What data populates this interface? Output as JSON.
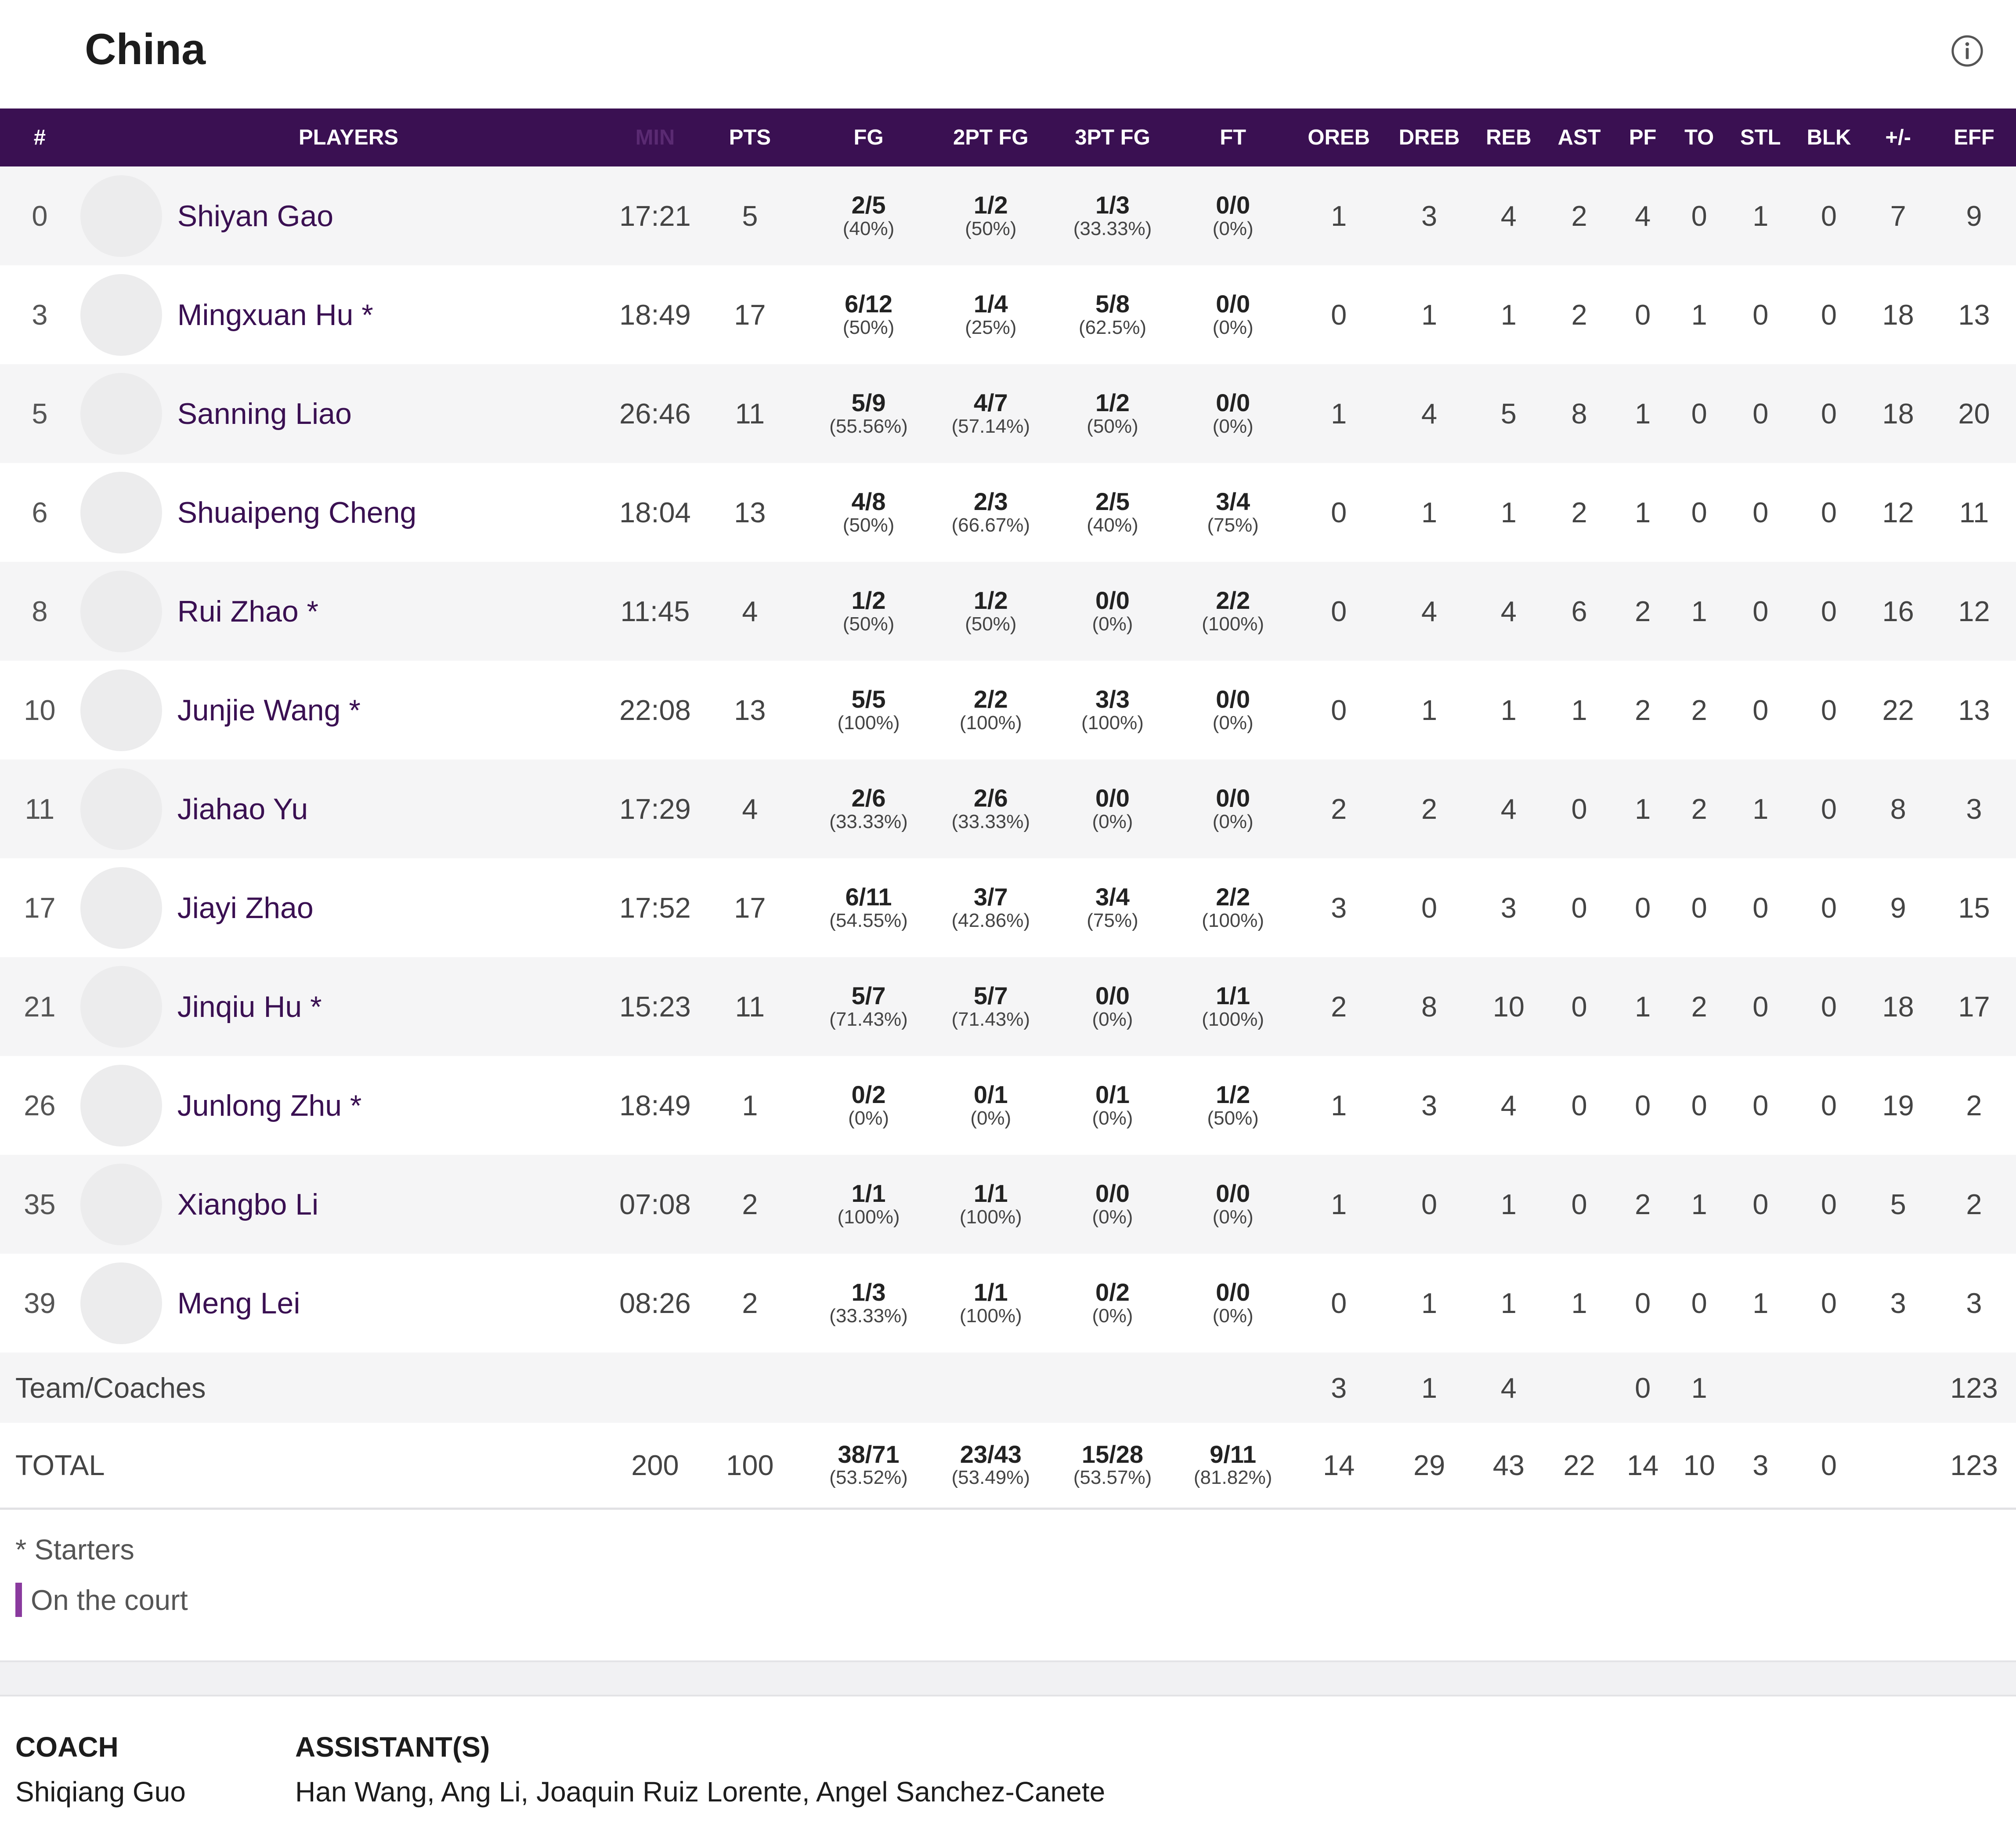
{
  "team": {
    "name": "China"
  },
  "columns": [
    "#",
    "PLAYERS",
    "MIN",
    "PTS",
    "FG",
    "2PT FG",
    "3PT FG",
    "FT",
    "OREB",
    "DREB",
    "REB",
    "AST",
    "PF",
    "TO",
    "STL",
    "BLK",
    "+/-",
    "EFF"
  ],
  "players": [
    {
      "num": "0",
      "name": "Shiyan Gao",
      "min": "17:21",
      "pts": "5",
      "fg": "2/5",
      "fg_pct": "(40%)",
      "fg2": "1/2",
      "fg2_pct": "(50%)",
      "fg3": "1/3",
      "fg3_pct": "(33.33%)",
      "ft": "0/0",
      "ft_pct": "(0%)",
      "oreb": "1",
      "dreb": "3",
      "reb": "4",
      "ast": "2",
      "pf": "4",
      "to": "0",
      "stl": "1",
      "blk": "0",
      "pm": "7",
      "eff": "9"
    },
    {
      "num": "3",
      "name": "Mingxuan Hu *",
      "min": "18:49",
      "pts": "17",
      "fg": "6/12",
      "fg_pct": "(50%)",
      "fg2": "1/4",
      "fg2_pct": "(25%)",
      "fg3": "5/8",
      "fg3_pct": "(62.5%)",
      "ft": "0/0",
      "ft_pct": "(0%)",
      "oreb": "0",
      "dreb": "1",
      "reb": "1",
      "ast": "2",
      "pf": "0",
      "to": "1",
      "stl": "0",
      "blk": "0",
      "pm": "18",
      "eff": "13"
    },
    {
      "num": "5",
      "name": "Sanning Liao",
      "min": "26:46",
      "pts": "11",
      "fg": "5/9",
      "fg_pct": "(55.56%)",
      "fg2": "4/7",
      "fg2_pct": "(57.14%)",
      "fg3": "1/2",
      "fg3_pct": "(50%)",
      "ft": "0/0",
      "ft_pct": "(0%)",
      "oreb": "1",
      "dreb": "4",
      "reb": "5",
      "ast": "8",
      "pf": "1",
      "to": "0",
      "stl": "0",
      "blk": "0",
      "pm": "18",
      "eff": "20"
    },
    {
      "num": "6",
      "name": "Shuaipeng Cheng",
      "min": "18:04",
      "pts": "13",
      "fg": "4/8",
      "fg_pct": "(50%)",
      "fg2": "2/3",
      "fg2_pct": "(66.67%)",
      "fg3": "2/5",
      "fg3_pct": "(40%)",
      "ft": "3/4",
      "ft_pct": "(75%)",
      "oreb": "0",
      "dreb": "1",
      "reb": "1",
      "ast": "2",
      "pf": "1",
      "to": "0",
      "stl": "0",
      "blk": "0",
      "pm": "12",
      "eff": "11"
    },
    {
      "num": "8",
      "name": "Rui Zhao *",
      "min": "11:45",
      "pts": "4",
      "fg": "1/2",
      "fg_pct": "(50%)",
      "fg2": "1/2",
      "fg2_pct": "(50%)",
      "fg3": "0/0",
      "fg3_pct": "(0%)",
      "ft": "2/2",
      "ft_pct": "(100%)",
      "oreb": "0",
      "dreb": "4",
      "reb": "4",
      "ast": "6",
      "pf": "2",
      "to": "1",
      "stl": "0",
      "blk": "0",
      "pm": "16",
      "eff": "12"
    },
    {
      "num": "10",
      "name": "Junjie Wang *",
      "min": "22:08",
      "pts": "13",
      "fg": "5/5",
      "fg_pct": "(100%)",
      "fg2": "2/2",
      "fg2_pct": "(100%)",
      "fg3": "3/3",
      "fg3_pct": "(100%)",
      "ft": "0/0",
      "ft_pct": "(0%)",
      "oreb": "0",
      "dreb": "1",
      "reb": "1",
      "ast": "1",
      "pf": "2",
      "to": "2",
      "stl": "0",
      "blk": "0",
      "pm": "22",
      "eff": "13"
    },
    {
      "num": "11",
      "name": "Jiahao Yu",
      "min": "17:29",
      "pts": "4",
      "fg": "2/6",
      "fg_pct": "(33.33%)",
      "fg2": "2/6",
      "fg2_pct": "(33.33%)",
      "fg3": "0/0",
      "fg3_pct": "(0%)",
      "ft": "0/0",
      "ft_pct": "(0%)",
      "oreb": "2",
      "dreb": "2",
      "reb": "4",
      "ast": "0",
      "pf": "1",
      "to": "2",
      "stl": "1",
      "blk": "0",
      "pm": "8",
      "eff": "3"
    },
    {
      "num": "17",
      "name": "Jiayi Zhao",
      "min": "17:52",
      "pts": "17",
      "fg": "6/11",
      "fg_pct": "(54.55%)",
      "fg2": "3/7",
      "fg2_pct": "(42.86%)",
      "fg3": "3/4",
      "fg3_pct": "(75%)",
      "ft": "2/2",
      "ft_pct": "(100%)",
      "oreb": "3",
      "dreb": "0",
      "reb": "3",
      "ast": "0",
      "pf": "0",
      "to": "0",
      "stl": "0",
      "blk": "0",
      "pm": "9",
      "eff": "15"
    },
    {
      "num": "21",
      "name": "Jinqiu Hu *",
      "min": "15:23",
      "pts": "11",
      "fg": "5/7",
      "fg_pct": "(71.43%)",
      "fg2": "5/7",
      "fg2_pct": "(71.43%)",
      "fg3": "0/0",
      "fg3_pct": "(0%)",
      "ft": "1/1",
      "ft_pct": "(100%)",
      "oreb": "2",
      "dreb": "8",
      "reb": "10",
      "ast": "0",
      "pf": "1",
      "to": "2",
      "stl": "0",
      "blk": "0",
      "pm": "18",
      "eff": "17"
    },
    {
      "num": "26",
      "name": "Junlong Zhu *",
      "min": "18:49",
      "pts": "1",
      "fg": "0/2",
      "fg_pct": "(0%)",
      "fg2": "0/1",
      "fg2_pct": "(0%)",
      "fg3": "0/1",
      "fg3_pct": "(0%)",
      "ft": "1/2",
      "ft_pct": "(50%)",
      "oreb": "1",
      "dreb": "3",
      "reb": "4",
      "ast": "0",
      "pf": "0",
      "to": "0",
      "stl": "0",
      "blk": "0",
      "pm": "19",
      "eff": "2"
    },
    {
      "num": "35",
      "name": "Xiangbo Li",
      "min": "07:08",
      "pts": "2",
      "fg": "1/1",
      "fg_pct": "(100%)",
      "fg2": "1/1",
      "fg2_pct": "(100%)",
      "fg3": "0/0",
      "fg3_pct": "(0%)",
      "ft": "0/0",
      "ft_pct": "(0%)",
      "oreb": "1",
      "dreb": "0",
      "reb": "1",
      "ast": "0",
      "pf": "2",
      "to": "1",
      "stl": "0",
      "blk": "0",
      "pm": "5",
      "eff": "2"
    },
    {
      "num": "39",
      "name": "Meng Lei",
      "min": "08:26",
      "pts": "2",
      "fg": "1/3",
      "fg_pct": "(33.33%)",
      "fg2": "1/1",
      "fg2_pct": "(100%)",
      "fg3": "0/2",
      "fg3_pct": "(0%)",
      "ft": "0/0",
      "ft_pct": "(0%)",
      "oreb": "0",
      "dreb": "1",
      "reb": "1",
      "ast": "1",
      "pf": "0",
      "to": "0",
      "stl": "1",
      "blk": "0",
      "pm": "3",
      "eff": "3"
    }
  ],
  "team_coaches": {
    "label": "Team/Coaches",
    "oreb": "3",
    "dreb": "1",
    "reb": "4",
    "pf": "0",
    "to": "1",
    "eff": "123"
  },
  "total": {
    "label": "TOTAL",
    "min": "200",
    "pts": "100",
    "fg": "38/71",
    "fg_pct": "(53.52%)",
    "fg2": "23/43",
    "fg2_pct": "(53.49%)",
    "fg3": "15/28",
    "fg3_pct": "(53.57%)",
    "ft": "9/11",
    "ft_pct": "(81.82%)",
    "oreb": "14",
    "dreb": "29",
    "reb": "43",
    "ast": "22",
    "pf": "14",
    "to": "10",
    "stl": "3",
    "blk": "0",
    "eff": "123"
  },
  "legend": {
    "starters": "* Starters",
    "on_court": "On the court"
  },
  "coaching": {
    "coach_label": "COACH",
    "coach": "Shiqiang Guo",
    "assistants_label": "ASSISTANT(S)",
    "assistants": "Han Wang, Ang Li, Joaquin Ruiz Lorente, Angel Sanchez-Canete"
  },
  "colors": {
    "header_bg": "#3a1052",
    "name_color": "#3a1052",
    "on_court_bar": "#8a3a9e",
    "row_alt": "#f5f5f6"
  },
  "icons": {
    "info": "info-circle-icon"
  }
}
